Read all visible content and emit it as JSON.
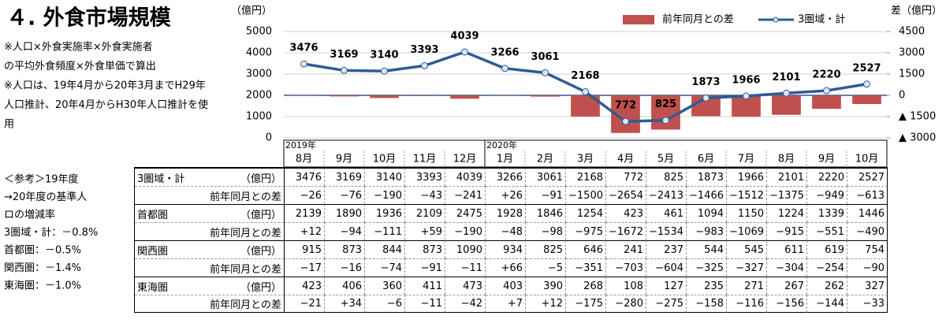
{
  "title": "４. 外食市場規模",
  "notes": [
    "※人口×外食実施率×外食実施者",
    "の平均外食頻度×外食単価で算出",
    "※人口は、19年4月から20年3月までH29年",
    "人口推計、20年4月からH30年人口推計を使",
    "用"
  ],
  "reference": [
    "＜参考＞19年度",
    "→20年度の基準人",
    "ロの増減率",
    "3圏域・計：－0.8%",
    "首都圏：－0.5%",
    "関西圏：－1.4%",
    "東海圏：－1.0%"
  ],
  "chart_data": {
    "type": "bar_line",
    "y_label": "（億円）",
    "y2_label": "差（億円）",
    "year_labels": [
      "2019年",
      "2020年"
    ],
    "categories": [
      "8月",
      "9月",
      "10月",
      "11月",
      "12月",
      "1月",
      "2月",
      "3月",
      "4月",
      "5月",
      "6月",
      "7月",
      "8月",
      "9月",
      "10月"
    ],
    "series": [
      {
        "name": "前年同月との差",
        "type": "bar",
        "axis": "y2",
        "color": "#c0504d",
        "values": [
          -26,
          -76,
          -190,
          -43,
          -241,
          26,
          -91,
          -1500,
          -2654,
          -2413,
          -1466,
          -1512,
          -1375,
          -949,
          -613
        ]
      },
      {
        "name": "3圏域・計",
        "type": "line",
        "color": "#2f5b96",
        "values": [
          3476,
          3169,
          3140,
          3393,
          4039,
          3266,
          3061,
          2168,
          772,
          825,
          1873,
          1966,
          2101,
          2220,
          2527
        ]
      }
    ],
    "ylim": [
      0,
      5000
    ],
    "yticks": [
      0,
      1000,
      2000,
      3000,
      4000,
      5000
    ],
    "y2lim": [
      -3000,
      4500
    ],
    "y2ticks": [
      {
        "value": -3000,
        "label": "▲ 3000"
      },
      {
        "value": -1500,
        "label": "▲ 1500"
      },
      0,
      1500,
      3000,
      4500
    ],
    "grid": true,
    "legend": "top-right"
  },
  "table": {
    "rows": [
      {
        "label": "3圏域・計",
        "unit": "（億円）",
        "values": [
          "3476",
          "3169",
          "3140",
          "3393",
          "4039",
          "3266",
          "3061",
          "2168",
          "772",
          "825",
          "1873",
          "1966",
          "2101",
          "2220",
          "2527"
        ]
      },
      {
        "label": "前年同月との差",
        "values": [
          "−26",
          "−76",
          "−190",
          "−43",
          "−241",
          "+26",
          "−91",
          "−1500",
          "−2654",
          "−2413",
          "−1466",
          "−1512",
          "−1375",
          "−949",
          "−613"
        ]
      },
      {
        "label": "首都圏",
        "unit": "（億円）",
        "values": [
          "2139",
          "1890",
          "1936",
          "2109",
          "2475",
          "1928",
          "1846",
          "1254",
          "423",
          "461",
          "1094",
          "1150",
          "1224",
          "1339",
          "1446"
        ]
      },
      {
        "label": "前年同月との差",
        "values": [
          "+12",
          "−94",
          "−111",
          "+59",
          "−190",
          "−48",
          "−98",
          "−975",
          "−1672",
          "−1534",
          "−983",
          "−1069",
          "−915",
          "−551",
          "−490"
        ]
      },
      {
        "label": "関西圏",
        "unit": "（億円）",
        "values": [
          "915",
          "873",
          "844",
          "873",
          "1090",
          "934",
          "825",
          "646",
          "241",
          "237",
          "544",
          "545",
          "611",
          "619",
          "754"
        ]
      },
      {
        "label": "前年同月との差",
        "values": [
          "−17",
          "−16",
          "−74",
          "−91",
          "−11",
          "+66",
          "−5",
          "−351",
          "−703",
          "−604",
          "−325",
          "−327",
          "−304",
          "−254",
          "−90"
        ]
      },
      {
        "label": "東海圏",
        "unit": "（億円）",
        "values": [
          "423",
          "406",
          "360",
          "411",
          "473",
          "403",
          "390",
          "268",
          "108",
          "127",
          "235",
          "271",
          "267",
          "262",
          "327"
        ]
      },
      {
        "label": "前年同月との差",
        "values": [
          "−21",
          "+34",
          "−6",
          "−11",
          "−42",
          "+7",
          "+12",
          "−175",
          "−280",
          "−275",
          "−158",
          "−116",
          "−156",
          "−144",
          "−33"
        ]
      }
    ]
  }
}
